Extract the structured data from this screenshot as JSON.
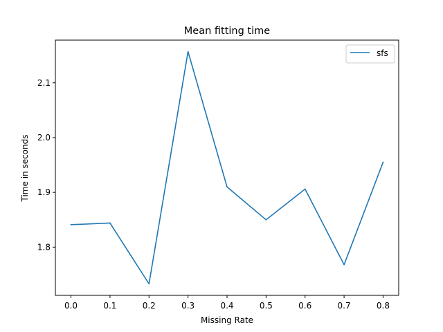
{
  "chart_data": {
    "type": "line",
    "title": "Mean fitting time",
    "xlabel": "Missing Rate",
    "ylabel": "Time in seconds",
    "x": [
      0.0,
      0.1,
      0.2,
      0.3,
      0.4,
      0.5,
      0.6,
      0.7,
      0.8
    ],
    "series": [
      {
        "name": "sfs",
        "color": "#1f77b4",
        "values": [
          1.841,
          1.844,
          1.733,
          2.157,
          1.91,
          1.85,
          1.906,
          1.768,
          1.955
        ]
      }
    ],
    "xlim": [
      -0.04,
      0.84
    ],
    "ylim": [
      1.712,
      2.178
    ],
    "xticks": [
      "0.0",
      "0.1",
      "0.2",
      "0.3",
      "0.4",
      "0.5",
      "0.6",
      "0.7",
      "0.8"
    ],
    "yticks": [
      "1.8",
      "1.9",
      "2.0",
      "2.1"
    ],
    "legend_position": "top-right",
    "grid": false
  }
}
